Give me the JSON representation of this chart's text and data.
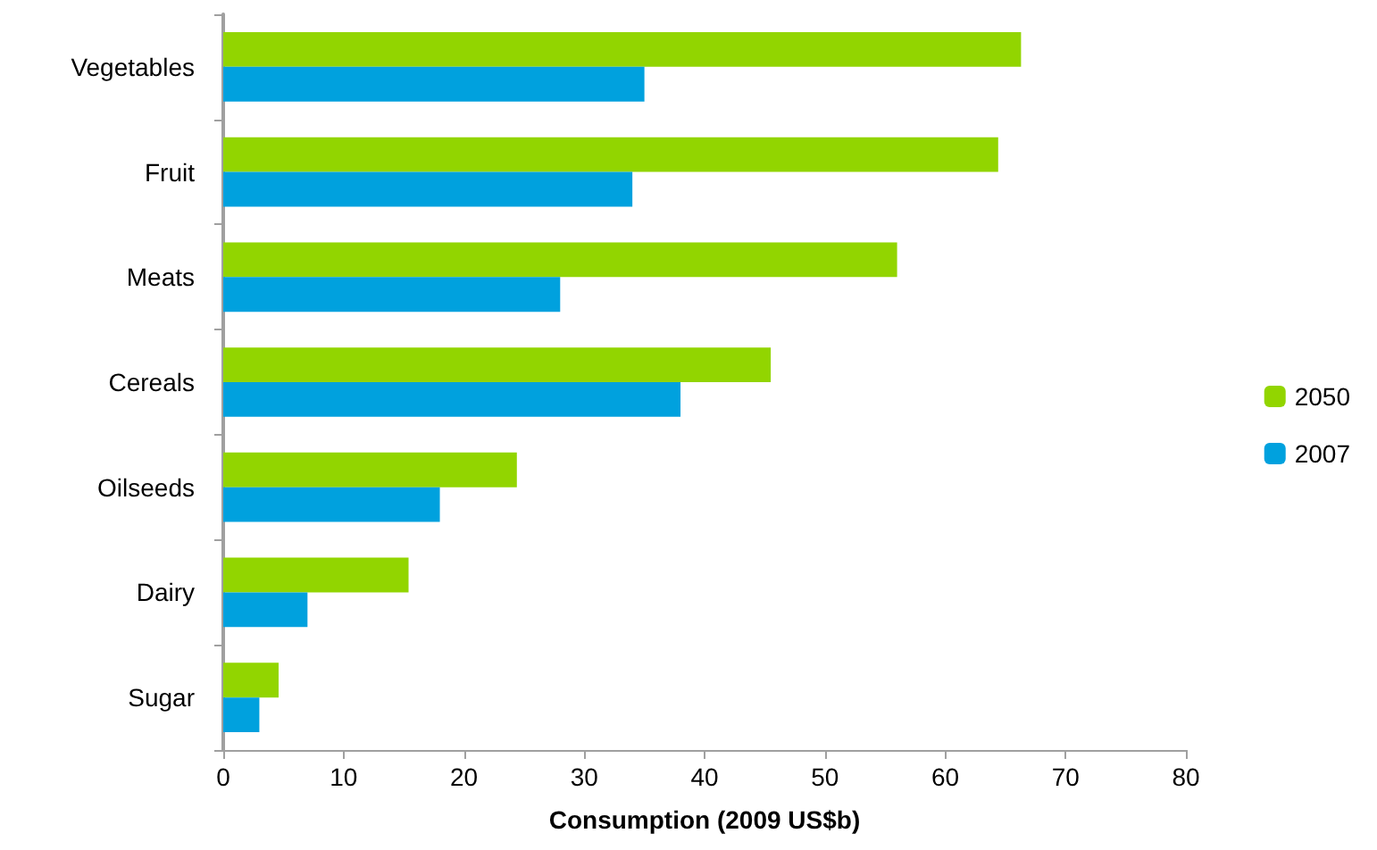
{
  "chart_data": {
    "type": "bar",
    "orientation": "horizontal",
    "xlabel": "Consumption (2009 US$b)",
    "categories": [
      "Vegetables",
      "Fruit",
      "Meats",
      "Cereals",
      "Oilseeds",
      "Dairy",
      "Sugar"
    ],
    "series": [
      {
        "name": "2050",
        "color": "#92d500",
        "values": [
          66.3,
          64.4,
          56,
          45.5,
          24.4,
          15.4,
          4.6
        ]
      },
      {
        "name": "2007",
        "color": "#00a1de",
        "values": [
          35,
          34,
          28,
          38,
          18,
          7,
          3
        ]
      }
    ],
    "xlim": [
      0,
      80
    ],
    "xticks": [
      0,
      10,
      20,
      30,
      40,
      50,
      60,
      70,
      80
    ],
    "grid": false,
    "legend": "right"
  }
}
